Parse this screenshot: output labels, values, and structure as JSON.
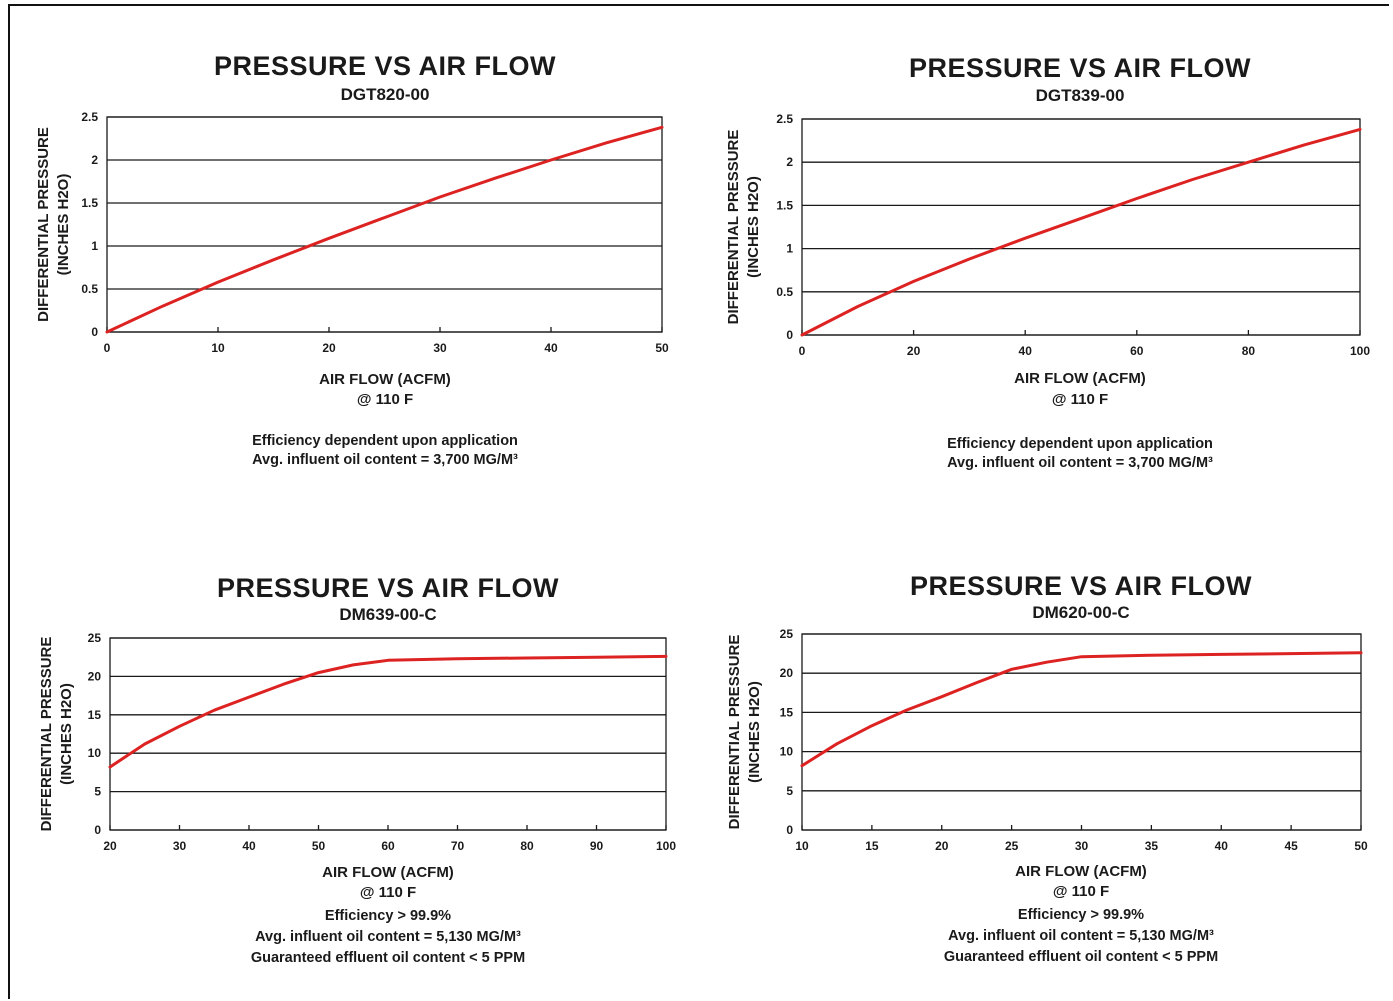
{
  "colors": {
    "curve": "#dd2222",
    "ink": "#1a1a1a"
  },
  "chart_data": [
    {
      "type": "line",
      "title": "PRESSURE VS AIR FLOW",
      "subtitle": "DGT820-00",
      "xlabel": "AIR FLOW (ACFM)",
      "xlabel2": "@ 110 F",
      "ylabel": "DIFFERENTIAL PRESSURE",
      "ylabel2": "(INCHES H2O)",
      "xlim": [
        0,
        50
      ],
      "ylim": [
        0,
        2.5
      ],
      "xticks": [
        "0",
        "10",
        "20",
        "30",
        "40",
        "50"
      ],
      "yticks": [
        "0",
        "0.5",
        "1",
        "1.5",
        "2",
        "2.5"
      ],
      "grid": true,
      "notes": [
        "Efficiency dependent upon application",
        "Avg. influent oil content = 3,700 MG/M³"
      ],
      "series": [
        {
          "x": [
            0,
            5,
            10,
            15,
            20,
            25,
            30,
            35,
            40,
            45,
            50
          ],
          "values": [
            0,
            0.3,
            0.58,
            0.84,
            1.09,
            1.33,
            1.57,
            1.79,
            2.0,
            2.2,
            2.38
          ]
        }
      ]
    },
    {
      "type": "line",
      "title": "PRESSURE VS AIR FLOW",
      "subtitle": "DGT839-00",
      "xlabel": "AIR FLOW (ACFM)",
      "xlabel2": "@ 110 F",
      "ylabel": "DIFFERENTIAL PRESSURE",
      "ylabel2": "(INCHES H2O)",
      "xlim": [
        0,
        100
      ],
      "ylim": [
        0,
        2.5
      ],
      "xticks": [
        "0",
        "20",
        "40",
        "60",
        "80",
        "100"
      ],
      "yticks": [
        "0",
        "0.5",
        "1",
        "1.5",
        "2",
        "2.5"
      ],
      "grid": true,
      "notes": [
        "Efficiency dependent upon application",
        "Avg. influent oil content = 3,700 MG/M³"
      ],
      "series": [
        {
          "x": [
            0,
            10,
            20,
            30,
            40,
            50,
            60,
            70,
            80,
            90,
            100
          ],
          "values": [
            0,
            0.33,
            0.62,
            0.88,
            1.12,
            1.35,
            1.58,
            1.8,
            2.0,
            2.2,
            2.38
          ]
        }
      ]
    },
    {
      "type": "line",
      "title": "PRESSURE VS AIR FLOW",
      "subtitle": "DM639-00-C",
      "xlabel": "AIR FLOW (ACFM)",
      "xlabel2": "@ 110 F",
      "ylabel": "DIFFERENTIAL PRESSURE",
      "ylabel2": "(INCHES H2O)",
      "xlim": [
        20,
        100
      ],
      "ylim": [
        0,
        25
      ],
      "xticks": [
        "20",
        "30",
        "40",
        "50",
        "60",
        "70",
        "80",
        "90",
        "100"
      ],
      "yticks": [
        "0",
        "5",
        "10",
        "15",
        "20",
        "25"
      ],
      "grid": true,
      "notes": [
        "Efficiency > 99.9%",
        "Avg. influent oil content = 5,130 MG/M³",
        "Guaranteed effluent oil content < 5 PPM"
      ],
      "series": [
        {
          "x": [
            20,
            25,
            30,
            35,
            40,
            45,
            50,
            55,
            60,
            70,
            80,
            90,
            100
          ],
          "values": [
            8.2,
            11.2,
            13.5,
            15.6,
            17.3,
            19.0,
            20.5,
            21.5,
            22.1,
            22.3,
            22.4,
            22.5,
            22.6
          ]
        }
      ]
    },
    {
      "type": "line",
      "title": "PRESSURE VS AIR FLOW",
      "subtitle": "DM620-00-C",
      "xlabel": "AIR FLOW (ACFM)",
      "xlabel2": "@ 110 F",
      "ylabel": "DIFFERENTIAL PRESSURE",
      "ylabel2": "(INCHES H2O)",
      "xlim": [
        10,
        50
      ],
      "ylim": [
        0,
        25
      ],
      "xticks": [
        "10",
        "15",
        "20",
        "25",
        "30",
        "35",
        "40",
        "45",
        "50"
      ],
      "yticks": [
        "0",
        "5",
        "10",
        "15",
        "20",
        "25"
      ],
      "grid": true,
      "notes": [
        "Efficiency > 99.9%",
        "Avg. influent oil content = 5,130 MG/M³",
        "Guaranteed effluent oil content < 5 PPM"
      ],
      "series": [
        {
          "x": [
            10,
            12.5,
            15,
            17.5,
            20,
            22.5,
            25,
            27.5,
            30,
            35,
            40,
            45,
            50
          ],
          "values": [
            8.2,
            11.0,
            13.3,
            15.3,
            17.0,
            18.8,
            20.5,
            21.4,
            22.1,
            22.3,
            22.4,
            22.5,
            22.6
          ]
        }
      ]
    }
  ]
}
